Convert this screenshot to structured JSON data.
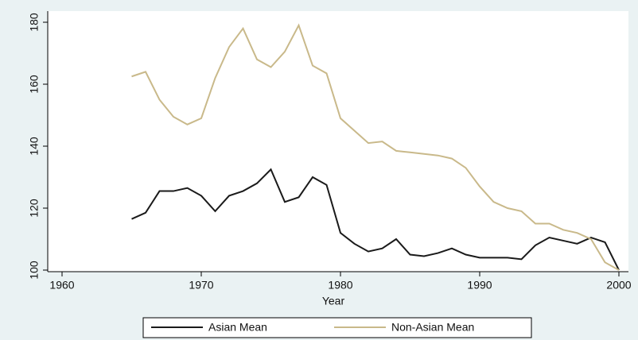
{
  "chart_data": {
    "type": "line",
    "x_label": "Year",
    "x": [
      1965,
      1966,
      1967,
      1968,
      1969,
      1970,
      1971,
      1972,
      1973,
      1974,
      1975,
      1976,
      1977,
      1978,
      1979,
      1980,
      1981,
      1982,
      1983,
      1984,
      1985,
      1986,
      1987,
      1988,
      1989,
      1990,
      1991,
      1992,
      1993,
      1994,
      1995,
      1996,
      1997,
      1998,
      1999,
      2000
    ],
    "series": [
      {
        "name": "Asian Mean",
        "color": "#1a1a1a",
        "values": [
          116.5,
          118.5,
          125.5,
          125.5,
          126.5,
          124,
          119,
          124,
          125.5,
          128,
          132.5,
          122,
          123.5,
          130,
          127.5,
          112,
          108.5,
          106,
          107,
          110,
          105,
          104.5,
          105.5,
          107,
          105,
          104,
          104,
          104,
          103.5,
          108,
          110.5,
          109.5,
          108.5,
          110.5,
          109,
          100
        ]
      },
      {
        "name": "Non-Asian Mean",
        "color": "#c9b98a",
        "values": [
          162.5,
          164,
          155,
          149.5,
          147,
          149,
          162,
          172,
          178,
          168,
          165.5,
          170.5,
          179,
          166,
          163.5,
          149,
          145,
          141,
          141.5,
          138.5,
          138,
          137.5,
          137,
          136,
          133,
          127,
          122,
          120,
          119,
          115,
          115,
          113,
          112,
          110,
          102.5,
          100
        ]
      }
    ],
    "xlim": [
      1960,
      2000
    ],
    "xticks": [
      1960,
      1970,
      1980,
      1990,
      2000
    ],
    "ylim": [
      100,
      180
    ],
    "yticks": [
      100,
      120,
      140,
      160,
      180
    ],
    "legend": "bottom"
  }
}
